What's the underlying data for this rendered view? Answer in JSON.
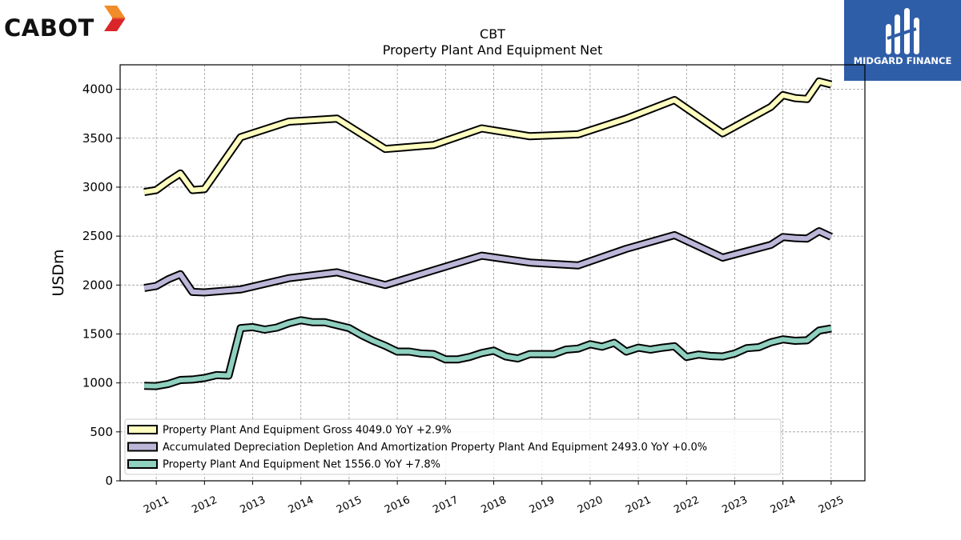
{
  "branding": {
    "left_logo_text": "CABOT",
    "right_logo_text": "MIDGARD FINANCE",
    "right_logo_color": "#2f5ea8"
  },
  "chart_data": {
    "type": "line",
    "title": "CBT",
    "subtitle": "Property Plant And Equipment Net",
    "ylabel": "USDm",
    "xlabel": "",
    "ylim": [
      0,
      4250
    ],
    "xlim": [
      2010.25,
      2025.7
    ],
    "yticks": [
      0,
      500,
      1000,
      1500,
      2000,
      2500,
      3000,
      3500,
      4000
    ],
    "xticks": [
      "2011",
      "2012",
      "2013",
      "2014",
      "2015",
      "2016",
      "2017",
      "2018",
      "2019",
      "2020",
      "2021",
      "2022",
      "2023",
      "2024",
      "2025"
    ],
    "grid": true,
    "legend_position": "lower-left",
    "series": [
      {
        "name": "Property Plant And Equipment Gross",
        "legend": "Property Plant And Equipment Gross  4049.0 YoY +2.9%",
        "color": "#ffffc0",
        "points": [
          [
            2010.75,
            2950
          ],
          [
            2011.0,
            2970
          ],
          [
            2011.25,
            3060
          ],
          [
            2011.5,
            3140
          ],
          [
            2011.75,
            2970
          ],
          [
            2012.0,
            2980
          ],
          [
            2012.75,
            3510
          ],
          [
            2013.75,
            3670
          ],
          [
            2014.75,
            3700
          ],
          [
            2015.75,
            3390
          ],
          [
            2016.75,
            3430
          ],
          [
            2017.75,
            3600
          ],
          [
            2018.75,
            3520
          ],
          [
            2019.75,
            3540
          ],
          [
            2020.75,
            3700
          ],
          [
            2021.75,
            3890
          ],
          [
            2022.75,
            3550
          ],
          [
            2023.75,
            3820
          ],
          [
            2024.0,
            3940
          ],
          [
            2024.25,
            3910
          ],
          [
            2024.5,
            3900
          ],
          [
            2024.75,
            4080
          ],
          [
            2025.0,
            4049
          ]
        ]
      },
      {
        "name": "Accumulated Depreciation Depletion And Amortization Property Plant And Equipment",
        "legend": "Accumulated Depreciation Depletion And Amortization Property Plant And Equipment  2493.0 YoY +0.0%",
        "color": "#bcb6d8",
        "points": [
          [
            2010.75,
            1970
          ],
          [
            2011.0,
            1990
          ],
          [
            2011.25,
            2060
          ],
          [
            2011.5,
            2110
          ],
          [
            2011.75,
            1930
          ],
          [
            2012.0,
            1925
          ],
          [
            2012.75,
            1955
          ],
          [
            2013.75,
            2070
          ],
          [
            2014.75,
            2130
          ],
          [
            2015.75,
            2000
          ],
          [
            2016.75,
            2150
          ],
          [
            2017.75,
            2300
          ],
          [
            2018.75,
            2230
          ],
          [
            2019.75,
            2200
          ],
          [
            2020.75,
            2370
          ],
          [
            2021.75,
            2510
          ],
          [
            2022.75,
            2280
          ],
          [
            2023.75,
            2410
          ],
          [
            2024.0,
            2490
          ],
          [
            2024.25,
            2480
          ],
          [
            2024.5,
            2475
          ],
          [
            2024.75,
            2550
          ],
          [
            2025.0,
            2493
          ]
        ]
      },
      {
        "name": "Property Plant And Equipment Net",
        "legend": "Property Plant And Equipment Net  1556.0 YoY +7.8%",
        "color": "#8fd0c0",
        "points": [
          [
            2010.75,
            970
          ],
          [
            2011.0,
            968
          ],
          [
            2011.25,
            990
          ],
          [
            2011.5,
            1030
          ],
          [
            2011.75,
            1035
          ],
          [
            2012.0,
            1050
          ],
          [
            2012.25,
            1080
          ],
          [
            2012.5,
            1075
          ],
          [
            2012.75,
            1560
          ],
          [
            2013.0,
            1570
          ],
          [
            2013.25,
            1545
          ],
          [
            2013.5,
            1565
          ],
          [
            2013.75,
            1610
          ],
          [
            2014.0,
            1640
          ],
          [
            2014.25,
            1620
          ],
          [
            2014.5,
            1620
          ],
          [
            2014.75,
            1590
          ],
          [
            2015.0,
            1560
          ],
          [
            2015.25,
            1490
          ],
          [
            2015.5,
            1430
          ],
          [
            2015.75,
            1380
          ],
          [
            2016.0,
            1320
          ],
          [
            2016.25,
            1320
          ],
          [
            2016.5,
            1300
          ],
          [
            2016.75,
            1295
          ],
          [
            2017.0,
            1240
          ],
          [
            2017.25,
            1240
          ],
          [
            2017.5,
            1265
          ],
          [
            2017.75,
            1305
          ],
          [
            2018.0,
            1330
          ],
          [
            2018.25,
            1270
          ],
          [
            2018.5,
            1250
          ],
          [
            2018.75,
            1295
          ],
          [
            2019.0,
            1295
          ],
          [
            2019.25,
            1295
          ],
          [
            2019.5,
            1340
          ],
          [
            2019.75,
            1350
          ],
          [
            2020.0,
            1395
          ],
          [
            2020.25,
            1370
          ],
          [
            2020.5,
            1410
          ],
          [
            2020.75,
            1320
          ],
          [
            2021.0,
            1360
          ],
          [
            2021.25,
            1340
          ],
          [
            2021.5,
            1360
          ],
          [
            2021.75,
            1375
          ],
          [
            2022.0,
            1265
          ],
          [
            2022.25,
            1290
          ],
          [
            2022.5,
            1275
          ],
          [
            2022.75,
            1270
          ],
          [
            2023.0,
            1300
          ],
          [
            2023.25,
            1355
          ],
          [
            2023.5,
            1365
          ],
          [
            2023.75,
            1415
          ],
          [
            2024.0,
            1445
          ],
          [
            2024.25,
            1430
          ],
          [
            2024.5,
            1435
          ],
          [
            2024.75,
            1535
          ],
          [
            2025.0,
            1556
          ]
        ]
      }
    ]
  }
}
